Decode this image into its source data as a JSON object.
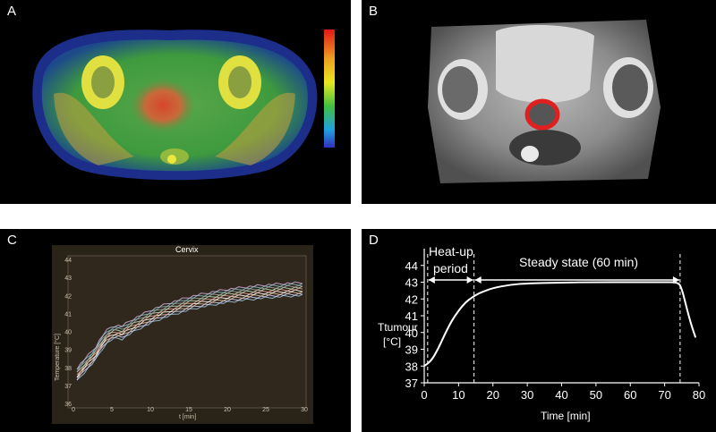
{
  "panels": {
    "a": {
      "letter": "A"
    },
    "b": {
      "letter": "B"
    },
    "c": {
      "letter": "C"
    },
    "d": {
      "letter": "D"
    }
  },
  "panel_c": {
    "title": "Cervix",
    "ylabel": "Temperature [°C]",
    "xlabel": "t [min]",
    "y_ticks": [
      "36",
      "37",
      "38",
      "39",
      "40",
      "41",
      "42",
      "43",
      "44"
    ],
    "x_ticks": [
      "0",
      "5",
      "10",
      "15",
      "20",
      "25",
      "30"
    ]
  },
  "colors": {
    "panel_background": "#000000",
    "tumour_outline": "#e02020",
    "curve": "#ffffff"
  },
  "chart_data": {
    "type": "line",
    "xlabel": "Time [min]",
    "ylabel_line1": "Ttumour",
    "ylabel_line2": "[°C]",
    "xlim": [
      0,
      80
    ],
    "ylim": [
      37,
      45
    ],
    "x_ticks": [
      0,
      10,
      20,
      30,
      40,
      50,
      60,
      70,
      80
    ],
    "y_ticks": [
      37,
      38,
      39,
      40,
      41,
      42,
      43,
      44
    ],
    "annotations": {
      "heatup_line1": "Heat-up",
      "heatup_line2": "period",
      "steady": "Steady state (60 min)"
    },
    "markers_x": [
      1,
      14.5,
      74.5
    ],
    "series": [
      {
        "x": [
          0,
          2,
          4,
          6,
          8,
          10,
          12,
          14,
          16,
          18,
          20,
          25,
          30,
          40,
          50,
          60,
          70,
          74,
          75,
          76,
          77,
          78,
          79
        ],
        "y": [
          38.0,
          38.3,
          39.0,
          39.9,
          40.7,
          41.3,
          41.8,
          42.1,
          42.35,
          42.5,
          42.65,
          42.85,
          42.93,
          42.98,
          43.0,
          43.0,
          43.0,
          43.0,
          42.6,
          41.8,
          41.0,
          40.3,
          39.7
        ]
      }
    ]
  }
}
